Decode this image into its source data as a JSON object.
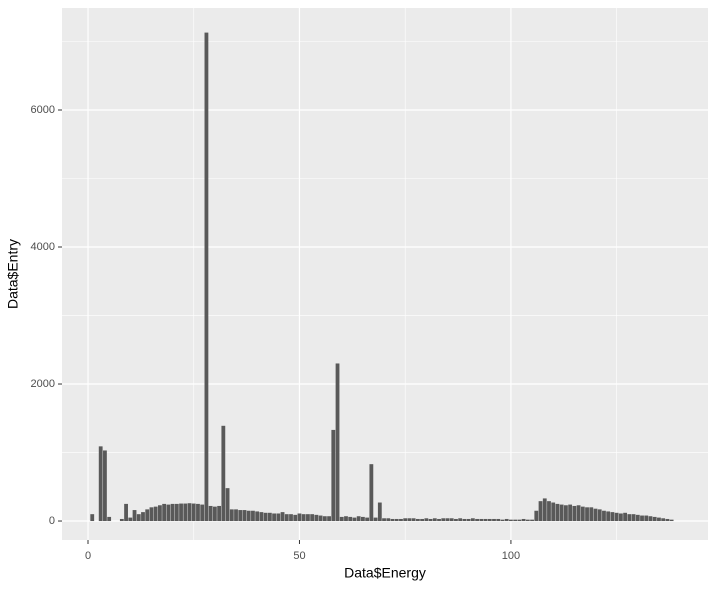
{
  "chart_data": {
    "type": "bar",
    "x_label": "Data$Energy",
    "y_label": "Data$Entry",
    "x": [
      1,
      3,
      4,
      5,
      8,
      9,
      10,
      11,
      12,
      13,
      14,
      15,
      16,
      17,
      18,
      19,
      20,
      21,
      22,
      23,
      24,
      25,
      26,
      27,
      28,
      29,
      30,
      31,
      32,
      33,
      34,
      35,
      36,
      37,
      38,
      39,
      40,
      41,
      42,
      43,
      44,
      45,
      46,
      47,
      48,
      49,
      50,
      51,
      52,
      53,
      54,
      55,
      56,
      57,
      58,
      59,
      60,
      61,
      62,
      63,
      64,
      65,
      66,
      67,
      68,
      69,
      70,
      71,
      72,
      73,
      74,
      75,
      76,
      77,
      78,
      79,
      80,
      81,
      82,
      83,
      84,
      85,
      86,
      87,
      88,
      89,
      90,
      91,
      92,
      93,
      94,
      95,
      96,
      97,
      98,
      99,
      100,
      101,
      102,
      103,
      104,
      105,
      106,
      107,
      108,
      109,
      110,
      111,
      112,
      113,
      114,
      115,
      116,
      117,
      118,
      119,
      120,
      121,
      122,
      123,
      124,
      125,
      126,
      127,
      128,
      129,
      130,
      131,
      132,
      133,
      134,
      135,
      136,
      137,
      138
    ],
    "values": [
      100,
      1090,
      1030,
      60,
      30,
      250,
      50,
      160,
      100,
      130,
      170,
      200,
      210,
      230,
      250,
      240,
      250,
      250,
      255,
      255,
      260,
      255,
      250,
      240,
      7130,
      220,
      210,
      220,
      1390,
      480,
      170,
      170,
      160,
      160,
      150,
      150,
      140,
      130,
      120,
      120,
      110,
      110,
      130,
      100,
      100,
      90,
      110,
      100,
      100,
      100,
      90,
      80,
      70,
      70,
      1330,
      2300,
      60,
      70,
      60,
      50,
      70,
      60,
      50,
      830,
      50,
      270,
      40,
      40,
      30,
      30,
      30,
      40,
      40,
      40,
      30,
      30,
      40,
      30,
      40,
      30,
      40,
      40,
      40,
      30,
      40,
      30,
      30,
      40,
      30,
      30,
      30,
      30,
      30,
      30,
      20,
      30,
      20,
      20,
      20,
      30,
      20,
      20,
      150,
      290,
      330,
      290,
      270,
      250,
      240,
      230,
      240,
      220,
      230,
      210,
      200,
      200,
      180,
      170,
      150,
      140,
      130,
      120,
      110,
      120,
      100,
      100,
      90,
      80,
      80,
      70,
      60,
      50,
      40,
      30,
      20
    ],
    "color": "#595959",
    "xlim": [
      -6.15,
      146.6
    ],
    "ylim": [
      -277,
      7489
    ],
    "xticks": [
      0,
      50,
      100
    ],
    "yticks": [
      0,
      2000,
      4000,
      6000
    ],
    "xminor": [
      25,
      75,
      125
    ],
    "yminor": [
      1000,
      3000,
      5000,
      7000
    ],
    "bar_width": 0.9,
    "grid": true
  }
}
